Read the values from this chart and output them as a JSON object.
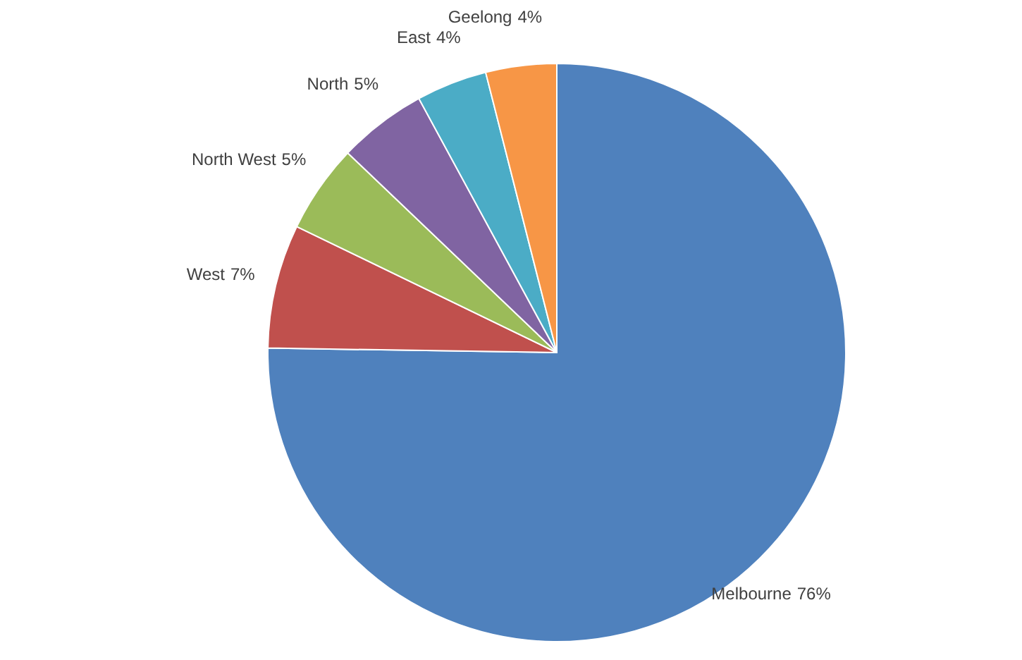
{
  "chart_data": {
    "type": "pie",
    "categories": [
      "Melbourne",
      "West",
      "North West",
      "North",
      "East",
      "Geelong"
    ],
    "values": [
      76,
      7,
      5,
      5,
      4,
      4
    ],
    "colors": [
      "#4f81bd",
      "#c0504d",
      "#9bbb59",
      "#8064a2",
      "#4bacc6",
      "#f79646"
    ],
    "value_labels": [
      "76%",
      "7%",
      "5%",
      "5%",
      "4%",
      "4%"
    ]
  }
}
